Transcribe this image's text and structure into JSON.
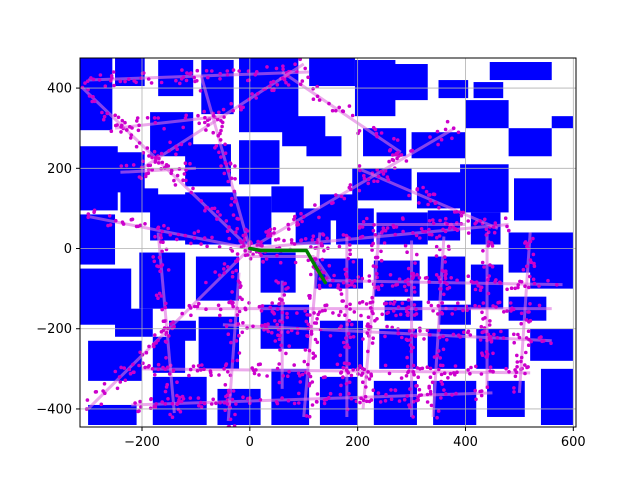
{
  "chart_data": {
    "type": "scatter",
    "title": "",
    "xlabel": "",
    "ylabel": "",
    "xlim": [
      -315,
      605
    ],
    "ylim": [
      -445,
      475
    ],
    "grid": true,
    "x_ticks": [
      -200,
      0,
      200,
      400,
      600
    ],
    "y_ticks": [
      -400,
      -200,
      0,
      200,
      400
    ],
    "x_tick_labels": [
      "−200",
      "0",
      "200",
      "400",
      "600"
    ],
    "y_tick_labels": [
      "−400",
      "−200",
      "0",
      "200",
      "400"
    ],
    "colors": {
      "obstacles": "#0000ff",
      "samples": "#cc00cc",
      "path": "#008000",
      "grid": "#b0b0b0"
    },
    "obstacles": [
      [
        -315,
        295,
        -255,
        475
      ],
      [
        -250,
        405,
        -195,
        475
      ],
      [
        -170,
        380,
        -105,
        470
      ],
      [
        -90,
        335,
        -30,
        470
      ],
      [
        -20,
        290,
        90,
        475
      ],
      [
        110,
        405,
        195,
        475
      ],
      [
        195,
        330,
        270,
        470
      ],
      [
        265,
        370,
        330,
        460
      ],
      [
        350,
        375,
        405,
        420
      ],
      [
        400,
        300,
        480,
        370
      ],
      [
        415,
        375,
        470,
        415
      ],
      [
        445,
        420,
        560,
        465
      ],
      [
        560,
        300,
        600,
        330
      ],
      [
        480,
        230,
        560,
        300
      ],
      [
        -315,
        95,
        -245,
        255
      ],
      [
        -255,
        140,
        -195,
        240
      ],
      [
        -185,
        230,
        -105,
        340
      ],
      [
        -120,
        155,
        -35,
        260
      ],
      [
        -20,
        160,
        55,
        270
      ],
      [
        60,
        255,
        140,
        330
      ],
      [
        105,
        230,
        170,
        280
      ],
      [
        210,
        230,
        290,
        300
      ],
      [
        300,
        225,
        400,
        290
      ],
      [
        390,
        90,
        480,
        210
      ],
      [
        490,
        70,
        560,
        175
      ],
      [
        310,
        100,
        395,
        190
      ],
      [
        190,
        120,
        300,
        200
      ],
      [
        130,
        70,
        200,
        135
      ],
      [
        85,
        10,
        150,
        100
      ],
      [
        -315,
        -40,
        -250,
        85
      ],
      [
        -240,
        90,
        -170,
        150
      ],
      [
        -185,
        20,
        -105,
        135
      ],
      [
        -120,
        10,
        -25,
        140
      ],
      [
        -30,
        10,
        40,
        130
      ],
      [
        40,
        90,
        100,
        155
      ],
      [
        160,
        10,
        230,
        100
      ],
      [
        235,
        10,
        330,
        90
      ],
      [
        330,
        20,
        390,
        95
      ],
      [
        410,
        10,
        465,
        90
      ],
      [
        480,
        -60,
        600,
        40
      ],
      [
        520,
        -100,
        600,
        -50
      ],
      [
        -315,
        -190,
        -220,
        -50
      ],
      [
        -205,
        -150,
        -120,
        -10
      ],
      [
        -100,
        -130,
        -20,
        -20
      ],
      [
        20,
        -110,
        85,
        -10
      ],
      [
        120,
        -100,
        210,
        -25
      ],
      [
        230,
        -120,
        315,
        -30
      ],
      [
        330,
        -130,
        400,
        -20
      ],
      [
        410,
        -150,
        470,
        -40
      ],
      [
        480,
        -180,
        550,
        -120
      ],
      [
        -300,
        -330,
        -200,
        -230
      ],
      [
        -180,
        -310,
        -120,
        -220
      ],
      [
        -95,
        -300,
        -20,
        -170
      ],
      [
        20,
        -250,
        110,
        -140
      ],
      [
        130,
        -300,
        210,
        -180
      ],
      [
        240,
        -300,
        310,
        -200
      ],
      [
        330,
        -300,
        400,
        -200
      ],
      [
        420,
        -300,
        480,
        -200
      ],
      [
        520,
        -280,
        600,
        -200
      ],
      [
        -300,
        -440,
        -210,
        -390
      ],
      [
        -180,
        -440,
        -80,
        -320
      ],
      [
        -60,
        -440,
        20,
        -350
      ],
      [
        40,
        -440,
        110,
        -300
      ],
      [
        130,
        -440,
        200,
        -320
      ],
      [
        230,
        -440,
        310,
        -330
      ],
      [
        340,
        -440,
        420,
        -330
      ],
      [
        440,
        -420,
        510,
        -330
      ],
      [
        540,
        -440,
        600,
        -300
      ],
      [
        -250,
        -220,
        -180,
        -150
      ],
      [
        -150,
        -230,
        -100,
        -180
      ],
      [
        250,
        -180,
        320,
        -130
      ],
      [
        350,
        -190,
        410,
        -140
      ]
    ],
    "sample_corridors": [
      [
        -300,
        420,
        110,
        440
      ],
      [
        -310,
        400,
        0,
        0
      ],
      [
        0,
        0,
        380,
        300
      ],
      [
        0,
        0,
        -300,
        -400
      ],
      [
        -300,
        80,
        0,
        0
      ],
      [
        60,
        440,
        280,
        240
      ],
      [
        -200,
        200,
        100,
        460
      ],
      [
        0,
        0,
        480,
        60
      ],
      [
        0,
        0,
        -90,
        430
      ],
      [
        200,
        200,
        460,
        50
      ],
      [
        0,
        -20,
        120,
        -20
      ],
      [
        120,
        -20,
        150,
        -80
      ],
      [
        140,
        -80,
        580,
        -90
      ],
      [
        -50,
        -190,
        560,
        -230
      ],
      [
        -200,
        -300,
        520,
        -310
      ],
      [
        -220,
        -390,
        450,
        -360
      ],
      [
        130,
        40,
        100,
        -420
      ],
      [
        240,
        40,
        210,
        -400
      ],
      [
        360,
        30,
        340,
        -420
      ],
      [
        520,
        40,
        500,
        -360
      ],
      [
        -240,
        190,
        -100,
        200
      ],
      [
        -20,
        -60,
        -40,
        -430
      ],
      [
        440,
        40,
        440,
        -350
      ],
      [
        -170,
        40,
        -140,
        -410
      ],
      [
        300,
        20,
        300,
        -420
      ],
      [
        -250,
        300,
        -50,
        330
      ],
      [
        200,
        60,
        400,
        60
      ],
      [
        -100,
        -150,
        560,
        -150
      ],
      [
        60,
        -80,
        60,
        -350
      ],
      [
        180,
        30,
        180,
        -420
      ]
    ],
    "path": {
      "x": [
        0,
        20,
        105,
        120,
        140
      ],
      "y": [
        0,
        -5,
        -5,
        -40,
        -85
      ]
    }
  }
}
